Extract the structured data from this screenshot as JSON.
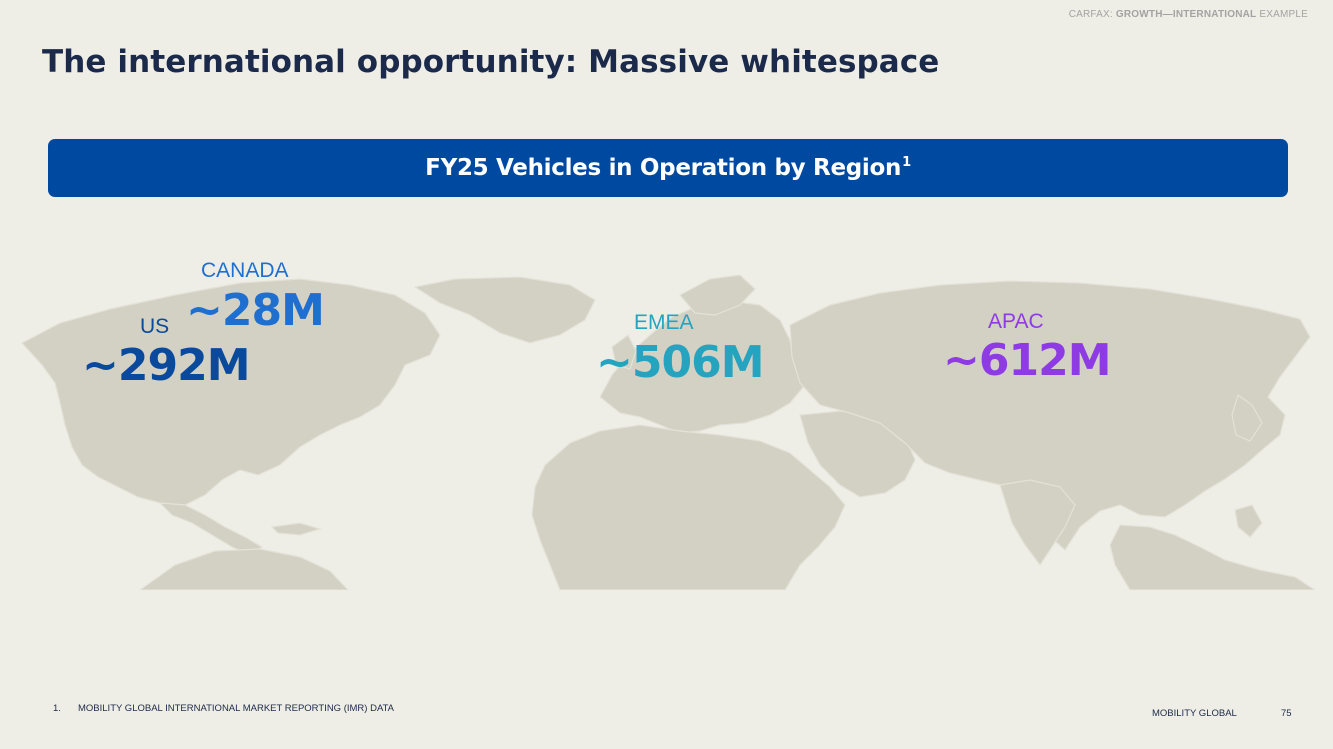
{
  "header": {
    "tag_prefix": "CARFAX:",
    "tag_bold": "GROWTH—INTERNATIONAL",
    "tag_suffix": "EXAMPLE"
  },
  "title": "The international opportunity: Massive whitespace",
  "banner": {
    "text": "FY25 Vehicles in Operation by Region",
    "footnote_ref": "1"
  },
  "regions": {
    "canada": {
      "label": "CANADA",
      "value": "~28M",
      "color": "#1f6fd1"
    },
    "us": {
      "label": "US",
      "value": "~292M",
      "color": "#0a4a9c"
    },
    "emea": {
      "label": "EMEA",
      "value": "~506M",
      "color": "#26a3bf"
    },
    "apac": {
      "label": "APAC",
      "value": "~612M",
      "color": "#8f3be3"
    }
  },
  "footnote": {
    "number": "1.",
    "text": "MOBILITY GLOBAL INTERNATIONAL MARKET REPORTING (IMR) DATA"
  },
  "footer": {
    "brand": "MOBILITY GLOBAL",
    "page": "75"
  },
  "colors": {
    "background": "#efeee6",
    "banner": "#0049a0",
    "title": "#1b2a4a",
    "map_land": "#d3d1c4"
  }
}
